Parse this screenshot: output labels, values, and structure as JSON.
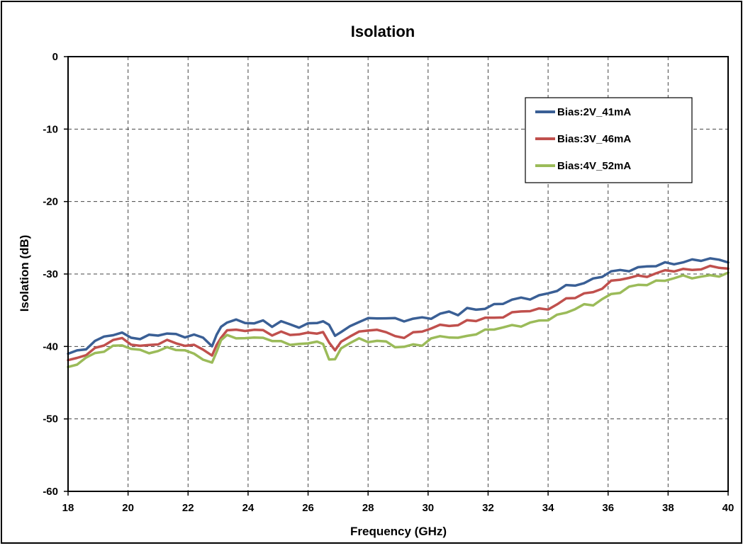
{
  "chart_data": {
    "type": "line",
    "title": "Isolation",
    "xlabel": "Frequency (GHz)",
    "ylabel": "Isolation (dB)",
    "xlim": [
      18,
      40
    ],
    "ylim": [
      -60,
      0
    ],
    "xticks": [
      18,
      20,
      22,
      24,
      26,
      28,
      30,
      32,
      34,
      36,
      38,
      40
    ],
    "yticks": [
      0,
      -10,
      -20,
      -30,
      -40,
      -50,
      -60
    ],
    "grid": true,
    "legend_position": "top-right",
    "series": [
      {
        "name": "Bias:2V_41mA",
        "color": "#3A5F95",
        "x": [
          18.0,
          18.3,
          18.6,
          18.9,
          19.2,
          19.5,
          19.8,
          20.1,
          20.4,
          20.7,
          21.0,
          21.3,
          21.6,
          21.9,
          22.2,
          22.5,
          22.8,
          22.95,
          23.1,
          23.3,
          23.6,
          23.9,
          24.2,
          24.5,
          24.8,
          25.1,
          25.4,
          25.7,
          26.0,
          26.3,
          26.5,
          26.7,
          26.9,
          27.1,
          27.4,
          27.7,
          28.0,
          28.3,
          28.6,
          28.9,
          29.2,
          29.5,
          29.8,
          30.1,
          30.4,
          30.7,
          31.0,
          31.3,
          31.6,
          31.9,
          32.2,
          32.5,
          32.8,
          33.1,
          33.4,
          33.7,
          34.0,
          34.3,
          34.6,
          34.9,
          35.2,
          35.5,
          35.8,
          36.1,
          36.4,
          36.7,
          37.0,
          37.3,
          37.6,
          37.9,
          38.2,
          38.5,
          38.8,
          39.1,
          39.4,
          39.7,
          40.0
        ],
        "values": [
          -41.0,
          -40.6,
          -40.1,
          -39.4,
          -38.8,
          -38.3,
          -38.2,
          -38.6,
          -38.9,
          -38.7,
          -38.4,
          -38.2,
          -38.3,
          -38.5,
          -38.6,
          -38.9,
          -39.8,
          -38.5,
          -37.1,
          -36.7,
          -36.6,
          -36.6,
          -36.8,
          -36.4,
          -37.1,
          -36.8,
          -37.0,
          -37.2,
          -36.9,
          -36.6,
          -36.6,
          -37.3,
          -38.3,
          -38.0,
          -37.2,
          -36.5,
          -36.4,
          -36.1,
          -35.9,
          -36.2,
          -36.4,
          -36.3,
          -36.2,
          -35.9,
          -35.5,
          -35.2,
          -35.6,
          -35.0,
          -34.8,
          -34.6,
          -34.3,
          -34.0,
          -33.7,
          -33.4,
          -33.2,
          -33.0,
          -32.7,
          -32.3,
          -31.8,
          -31.4,
          -31.1,
          -30.8,
          -30.3,
          -29.8,
          -29.5,
          -29.3,
          -29.2,
          -29.0,
          -28.9,
          -28.6,
          -28.4,
          -28.3,
          -28.2,
          -28.1,
          -28.0,
          -28.0,
          -28.1
        ]
      },
      {
        "name": "Bias:3V_46mA",
        "color": "#C0504D",
        "x": [
          18.0,
          18.3,
          18.6,
          18.9,
          19.2,
          19.5,
          19.8,
          20.1,
          20.4,
          20.7,
          21.0,
          21.3,
          21.6,
          21.9,
          22.2,
          22.5,
          22.8,
          22.95,
          23.1,
          23.3,
          23.6,
          23.9,
          24.2,
          24.5,
          24.8,
          25.1,
          25.4,
          25.7,
          26.0,
          26.3,
          26.5,
          26.7,
          26.9,
          27.1,
          27.4,
          27.7,
          28.0,
          28.3,
          28.6,
          28.9,
          29.2,
          29.5,
          29.8,
          30.1,
          30.4,
          30.7,
          31.0,
          31.3,
          31.6,
          31.9,
          32.2,
          32.5,
          32.8,
          33.1,
          33.4,
          33.7,
          34.0,
          34.3,
          34.6,
          34.9,
          35.2,
          35.5,
          35.8,
          36.1,
          36.4,
          36.7,
          37.0,
          37.3,
          37.6,
          37.9,
          38.2,
          38.5,
          38.8,
          39.1,
          39.4,
          39.7,
          40.0
        ],
        "values": [
          -42.2,
          -41.6,
          -41.0,
          -40.3,
          -39.7,
          -39.2,
          -39.1,
          -39.5,
          -39.9,
          -39.8,
          -39.6,
          -39.4,
          -39.5,
          -39.7,
          -39.9,
          -40.3,
          -41.4,
          -40.0,
          -38.5,
          -37.8,
          -37.7,
          -37.8,
          -38.0,
          -37.6,
          -38.3,
          -38.1,
          -38.3,
          -38.5,
          -38.2,
          -37.9,
          -38.1,
          -39.5,
          -40.5,
          -39.6,
          -38.4,
          -37.8,
          -38.0,
          -37.6,
          -38.2,
          -38.6,
          -38.5,
          -38.2,
          -38.0,
          -37.5,
          -37.2,
          -36.9,
          -37.0,
          -36.6,
          -36.4,
          -36.2,
          -36.0,
          -35.7,
          -35.5,
          -35.2,
          -35.1,
          -34.9,
          -34.6,
          -34.2,
          -33.6,
          -33.2,
          -32.8,
          -32.4,
          -31.8,
          -31.2,
          -30.8,
          -30.5,
          -30.3,
          -30.1,
          -30.0,
          -29.7,
          -29.5,
          -29.4,
          -29.3,
          -29.2,
          -29.2,
          -29.1,
          -29.2
        ]
      },
      {
        "name": "Bias:4V_52mA",
        "color": "#9BBB59",
        "x": [
          18.0,
          18.3,
          18.6,
          18.9,
          19.2,
          19.5,
          19.8,
          20.1,
          20.4,
          20.7,
          21.0,
          21.3,
          21.6,
          21.9,
          22.2,
          22.5,
          22.8,
          22.95,
          23.1,
          23.3,
          23.6,
          23.9,
          24.2,
          24.5,
          24.8,
          25.1,
          25.4,
          25.7,
          26.0,
          26.3,
          26.5,
          26.7,
          26.9,
          27.1,
          27.4,
          27.7,
          28.0,
          28.3,
          28.6,
          28.9,
          29.2,
          29.5,
          29.8,
          30.1,
          30.4,
          30.7,
          31.0,
          31.3,
          31.6,
          31.9,
          32.2,
          32.5,
          32.8,
          33.1,
          33.4,
          33.7,
          34.0,
          34.3,
          34.6,
          34.9,
          35.2,
          35.5,
          35.8,
          36.1,
          36.4,
          36.7,
          37.0,
          37.3,
          37.6,
          37.9,
          38.2,
          38.5,
          38.8,
          39.1,
          39.4,
          39.7,
          40.0
        ],
        "values": [
          -43.0,
          -42.4,
          -41.7,
          -41.0,
          -40.4,
          -40.0,
          -39.9,
          -40.3,
          -40.7,
          -40.7,
          -40.5,
          -40.3,
          -40.4,
          -40.7,
          -41.0,
          -41.5,
          -42.4,
          -40.8,
          -39.1,
          -38.6,
          -38.6,
          -38.8,
          -39.0,
          -38.7,
          -39.4,
          -39.2,
          -39.5,
          -39.9,
          -39.6,
          -39.3,
          -39.8,
          -41.5,
          -41.8,
          -40.5,
          -39.4,
          -39.0,
          -39.3,
          -39.0,
          -39.6,
          -40.1,
          -40.0,
          -39.8,
          -39.6,
          -39.0,
          -38.8,
          -38.6,
          -38.9,
          -38.4,
          -38.2,
          -38.0,
          -37.6,
          -37.3,
          -37.1,
          -37.0,
          -36.9,
          -36.6,
          -36.2,
          -35.7,
          -35.2,
          -34.8,
          -34.5,
          -34.2,
          -33.4,
          -32.8,
          -32.4,
          -32.0,
          -31.6,
          -31.3,
          -31.0,
          -30.8,
          -30.6,
          -30.5,
          -30.4,
          -30.3,
          -30.2,
          -30.2,
          -30.1
        ]
      }
    ]
  }
}
